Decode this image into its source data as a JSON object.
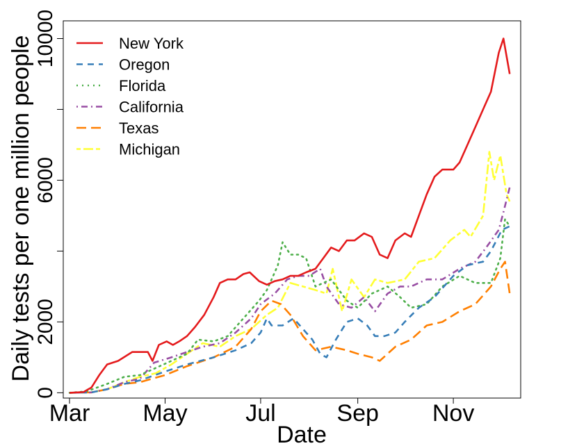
{
  "chart_data": {
    "type": "line",
    "xlabel": "Date",
    "ylabel": "Daily tests per one million people",
    "x_axis_type": "date",
    "xlim": [
      "2020-02-26",
      "2020-12-14"
    ],
    "ylim": [
      -150,
      10500
    ],
    "x_ticks": [
      {
        "label": "Mar",
        "date": "2020-03-01"
      },
      {
        "label": "May",
        "date": "2020-05-01"
      },
      {
        "label": "Jul",
        "date": "2020-07-01"
      },
      {
        "label": "Sep",
        "date": "2020-09-01"
      },
      {
        "label": "Nov",
        "date": "2020-11-01"
      }
    ],
    "y_ticks": [
      0,
      2000,
      6000,
      10000
    ],
    "y_minor_ticks": [
      4000,
      8000
    ],
    "grid": false,
    "legend_position": "top-left",
    "series": [
      {
        "name": "New York",
        "color": "#e41a1c",
        "dash": "solid",
        "points": [
          [
            "2020-03-01",
            0
          ],
          [
            "2020-03-10",
            20
          ],
          [
            "2020-03-15",
            150
          ],
          [
            "2020-03-20",
            500
          ],
          [
            "2020-03-25",
            800
          ],
          [
            "2020-04-01",
            900
          ],
          [
            "2020-04-10",
            1150
          ],
          [
            "2020-04-20",
            1150
          ],
          [
            "2020-04-23",
            900
          ],
          [
            "2020-04-27",
            1350
          ],
          [
            "2020-05-02",
            1450
          ],
          [
            "2020-05-06",
            1350
          ],
          [
            "2020-05-10",
            1450
          ],
          [
            "2020-05-15",
            1600
          ],
          [
            "2020-05-20",
            1850
          ],
          [
            "2020-05-26",
            2200
          ],
          [
            "2020-06-01",
            2700
          ],
          [
            "2020-06-05",
            3100
          ],
          [
            "2020-06-10",
            3200
          ],
          [
            "2020-06-15",
            3200
          ],
          [
            "2020-06-20",
            3350
          ],
          [
            "2020-06-24",
            3400
          ],
          [
            "2020-06-30",
            3150
          ],
          [
            "2020-07-05",
            3050
          ],
          [
            "2020-07-10",
            3150
          ],
          [
            "2020-07-15",
            3200
          ],
          [
            "2020-07-20",
            3300
          ],
          [
            "2020-07-25",
            3300
          ],
          [
            "2020-07-30",
            3400
          ],
          [
            "2020-08-05",
            3500
          ],
          [
            "2020-08-10",
            3800
          ],
          [
            "2020-08-15",
            4100
          ],
          [
            "2020-08-20",
            4000
          ],
          [
            "2020-08-25",
            4300
          ],
          [
            "2020-08-30",
            4300
          ],
          [
            "2020-09-05",
            4500
          ],
          [
            "2020-09-10",
            4400
          ],
          [
            "2020-09-15",
            3900
          ],
          [
            "2020-09-20",
            3800
          ],
          [
            "2020-09-25",
            4300
          ],
          [
            "2020-10-01",
            4500
          ],
          [
            "2020-10-05",
            4400
          ],
          [
            "2020-10-10",
            5000
          ],
          [
            "2020-10-15",
            5600
          ],
          [
            "2020-10-20",
            6100
          ],
          [
            "2020-10-25",
            6300
          ],
          [
            "2020-11-01",
            6300
          ],
          [
            "2020-11-05",
            6500
          ],
          [
            "2020-11-10",
            7000
          ],
          [
            "2020-11-15",
            7500
          ],
          [
            "2020-11-20",
            8000
          ],
          [
            "2020-11-25",
            8500
          ],
          [
            "2020-11-30",
            9600
          ],
          [
            "2020-12-03",
            10000
          ],
          [
            "2020-12-07",
            9000
          ]
        ]
      },
      {
        "name": "Oregon",
        "color": "#377eb8",
        "dash": "dashed",
        "points": [
          [
            "2020-03-01",
            0
          ],
          [
            "2020-03-15",
            10
          ],
          [
            "2020-03-25",
            100
          ],
          [
            "2020-04-05",
            250
          ],
          [
            "2020-04-15",
            350
          ],
          [
            "2020-05-01",
            600
          ],
          [
            "2020-05-15",
            800
          ],
          [
            "2020-06-01",
            1000
          ],
          [
            "2020-06-15",
            1200
          ],
          [
            "2020-06-25",
            1400
          ],
          [
            "2020-07-01",
            1700
          ],
          [
            "2020-07-05",
            2100
          ],
          [
            "2020-07-08",
            1900
          ],
          [
            "2020-07-15",
            1900
          ],
          [
            "2020-07-22",
            2100
          ],
          [
            "2020-07-28",
            1800
          ],
          [
            "2020-08-03",
            1500
          ],
          [
            "2020-08-08",
            1100
          ],
          [
            "2020-08-12",
            1000
          ],
          [
            "2020-08-18",
            1500
          ],
          [
            "2020-08-25",
            2000
          ],
          [
            "2020-09-01",
            2100
          ],
          [
            "2020-09-07",
            1900
          ],
          [
            "2020-09-12",
            1600
          ],
          [
            "2020-09-18",
            1600
          ],
          [
            "2020-09-25",
            1700
          ],
          [
            "2020-10-01",
            2000
          ],
          [
            "2020-10-10",
            2400
          ],
          [
            "2020-10-20",
            2700
          ],
          [
            "2020-11-01",
            3300
          ],
          [
            "2020-11-10",
            3600
          ],
          [
            "2020-11-20",
            3700
          ],
          [
            "2020-11-25",
            4000
          ],
          [
            "2020-12-02",
            4600
          ],
          [
            "2020-12-07",
            4700
          ]
        ]
      },
      {
        "name": "Florida",
        "color": "#4daf4a",
        "dash": "dotted",
        "points": [
          [
            "2020-03-01",
            0
          ],
          [
            "2020-03-12",
            40
          ],
          [
            "2020-03-25",
            250
          ],
          [
            "2020-04-05",
            450
          ],
          [
            "2020-04-15",
            500
          ],
          [
            "2020-04-25",
            700
          ],
          [
            "2020-05-05",
            900
          ],
          [
            "2020-05-15",
            1100
          ],
          [
            "2020-05-22",
            1500
          ],
          [
            "2020-06-01",
            1450
          ],
          [
            "2020-06-10",
            1600
          ],
          [
            "2020-06-20",
            2100
          ],
          [
            "2020-06-30",
            2600
          ],
          [
            "2020-07-05",
            2900
          ],
          [
            "2020-07-12",
            3600
          ],
          [
            "2020-07-15",
            4250
          ],
          [
            "2020-07-20",
            3900
          ],
          [
            "2020-07-25",
            3900
          ],
          [
            "2020-07-30",
            3800
          ],
          [
            "2020-08-05",
            3000
          ],
          [
            "2020-08-15",
            3200
          ],
          [
            "2020-08-25",
            2600
          ],
          [
            "2020-09-01",
            2400
          ],
          [
            "2020-09-10",
            2800
          ],
          [
            "2020-09-20",
            3000
          ],
          [
            "2020-09-28",
            2700
          ],
          [
            "2020-10-05",
            2400
          ],
          [
            "2020-10-15",
            2500
          ],
          [
            "2020-10-25",
            3000
          ],
          [
            "2020-11-05",
            3300
          ],
          [
            "2020-11-15",
            3100
          ],
          [
            "2020-11-25",
            3100
          ],
          [
            "2020-12-01",
            3800
          ],
          [
            "2020-12-04",
            4900
          ],
          [
            "2020-12-07",
            4700
          ]
        ]
      },
      {
        "name": "California",
        "color": "#984ea3",
        "dash": "dashdot",
        "points": [
          [
            "2020-03-01",
            0
          ],
          [
            "2020-03-15",
            10
          ],
          [
            "2020-03-25",
            100
          ],
          [
            "2020-04-05",
            300
          ],
          [
            "2020-04-15",
            400
          ],
          [
            "2020-04-24",
            850
          ],
          [
            "2020-05-05",
            1000
          ],
          [
            "2020-05-15",
            1150
          ],
          [
            "2020-05-25",
            1300
          ],
          [
            "2020-06-05",
            1400
          ],
          [
            "2020-06-15",
            1700
          ],
          [
            "2020-06-25",
            2100
          ],
          [
            "2020-07-01",
            2500
          ],
          [
            "2020-07-10",
            2800
          ],
          [
            "2020-07-18",
            3200
          ],
          [
            "2020-07-25",
            3300
          ],
          [
            "2020-08-01",
            3300
          ],
          [
            "2020-08-08",
            3500
          ],
          [
            "2020-08-12",
            3000
          ],
          [
            "2020-08-20",
            2500
          ],
          [
            "2020-08-28",
            2400
          ],
          [
            "2020-09-05",
            2700
          ],
          [
            "2020-09-12",
            2300
          ],
          [
            "2020-09-20",
            2800
          ],
          [
            "2020-09-28",
            3000
          ],
          [
            "2020-10-05",
            3000
          ],
          [
            "2020-10-15",
            3200
          ],
          [
            "2020-10-25",
            3200
          ],
          [
            "2020-11-05",
            3500
          ],
          [
            "2020-11-15",
            3700
          ],
          [
            "2020-11-22",
            4100
          ],
          [
            "2020-11-30",
            4600
          ],
          [
            "2020-12-03",
            5100
          ],
          [
            "2020-12-07",
            5800
          ]
        ]
      },
      {
        "name": "Texas",
        "color": "#ff7f00",
        "dash": "longdash",
        "points": [
          [
            "2020-03-01",
            0
          ],
          [
            "2020-03-15",
            10
          ],
          [
            "2020-03-25",
            100
          ],
          [
            "2020-04-05",
            250
          ],
          [
            "2020-04-15",
            300
          ],
          [
            "2020-05-01",
            500
          ],
          [
            "2020-05-15",
            750
          ],
          [
            "2020-06-01",
            1000
          ],
          [
            "2020-06-15",
            1300
          ],
          [
            "2020-06-25",
            1800
          ],
          [
            "2020-07-01",
            2300
          ],
          [
            "2020-07-08",
            2600
          ],
          [
            "2020-07-14",
            2500
          ],
          [
            "2020-07-20",
            2200
          ],
          [
            "2020-07-28",
            1600
          ],
          [
            "2020-08-05",
            1200
          ],
          [
            "2020-08-15",
            1300
          ],
          [
            "2020-08-25",
            1200
          ],
          [
            "2020-09-01",
            1100
          ],
          [
            "2020-09-10",
            1000
          ],
          [
            "2020-09-15",
            900
          ],
          [
            "2020-09-25",
            1300
          ],
          [
            "2020-10-05",
            1500
          ],
          [
            "2020-10-15",
            1900
          ],
          [
            "2020-10-25",
            2000
          ],
          [
            "2020-11-05",
            2300
          ],
          [
            "2020-11-15",
            2500
          ],
          [
            "2020-11-25",
            3000
          ],
          [
            "2020-12-01",
            3500
          ],
          [
            "2020-12-04",
            3700
          ],
          [
            "2020-12-07",
            2800
          ]
        ]
      },
      {
        "name": "Michigan",
        "color": "#ffff33",
        "dash": "twodash",
        "points": [
          [
            "2020-03-01",
            0
          ],
          [
            "2020-03-15",
            10
          ],
          [
            "2020-03-25",
            100
          ],
          [
            "2020-04-05",
            300
          ],
          [
            "2020-04-15",
            450
          ],
          [
            "2020-04-25",
            550
          ],
          [
            "2020-05-05",
            800
          ],
          [
            "2020-05-15",
            1100
          ],
          [
            "2020-05-25",
            1400
          ],
          [
            "2020-06-05",
            1300
          ],
          [
            "2020-06-15",
            1600
          ],
          [
            "2020-06-25",
            1800
          ],
          [
            "2020-07-05",
            2200
          ],
          [
            "2020-07-12",
            2400
          ],
          [
            "2020-07-20",
            3100
          ],
          [
            "2020-07-28",
            3000
          ],
          [
            "2020-08-05",
            2900
          ],
          [
            "2020-08-12",
            2800
          ],
          [
            "2020-08-16",
            3500
          ],
          [
            "2020-08-22",
            2300
          ],
          [
            "2020-08-28",
            3200
          ],
          [
            "2020-09-05",
            2700
          ],
          [
            "2020-09-12",
            3200
          ],
          [
            "2020-09-20",
            3100
          ],
          [
            "2020-10-01",
            3200
          ],
          [
            "2020-10-10",
            3700
          ],
          [
            "2020-10-20",
            3800
          ],
          [
            "2020-10-30",
            4300
          ],
          [
            "2020-11-08",
            4600
          ],
          [
            "2020-11-12",
            4400
          ],
          [
            "2020-11-20",
            5000
          ],
          [
            "2020-11-24",
            6800
          ],
          [
            "2020-11-27",
            6000
          ],
          [
            "2020-12-01",
            6700
          ],
          [
            "2020-12-05",
            5600
          ],
          [
            "2020-12-07",
            5400
          ]
        ]
      }
    ]
  }
}
